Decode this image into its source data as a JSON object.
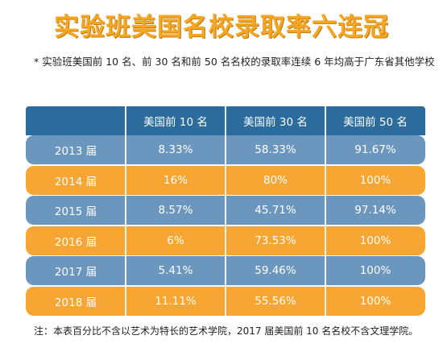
{
  "title": "实验班美国名校录取率六连冠",
  "subtitle": "* 实验班美国前 10 名、前 30 名和前 50 名名校的录取率连续 6 年均高于广东省其他学校",
  "note": "注：本表百分比不含以艺术为特长的艺术学院，2017 届美国前 10 名名校不含文理学院。",
  "colors": {
    "title": "#f5a623",
    "header": "#2b6c9c",
    "row_blue": "#6b97be",
    "row_orange": "#f7a533"
  },
  "chart_data": {
    "type": "table",
    "columns": [
      "",
      "美国前 10 名",
      "美国前 30 名",
      "美国前 50 名"
    ],
    "rows": [
      {
        "label": "2013 届",
        "values": [
          "8.33%",
          "58.33%",
          "91.67%"
        ],
        "style": "blue"
      },
      {
        "label": "2014 届",
        "values": [
          "16%",
          "80%",
          "100%"
        ],
        "style": "orange"
      },
      {
        "label": "2015 届",
        "values": [
          "8.57%",
          "45.71%",
          "97.14%"
        ],
        "style": "blue"
      },
      {
        "label": "2016 届",
        "values": [
          "6%",
          "73.53%",
          "100%"
        ],
        "style": "orange"
      },
      {
        "label": "2017 届",
        "values": [
          "5.41%",
          "59.46%",
          "100%"
        ],
        "style": "blue"
      },
      {
        "label": "2018 届",
        "values": [
          "11.11%",
          "55.56%",
          "100%"
        ],
        "style": "orange"
      }
    ]
  }
}
